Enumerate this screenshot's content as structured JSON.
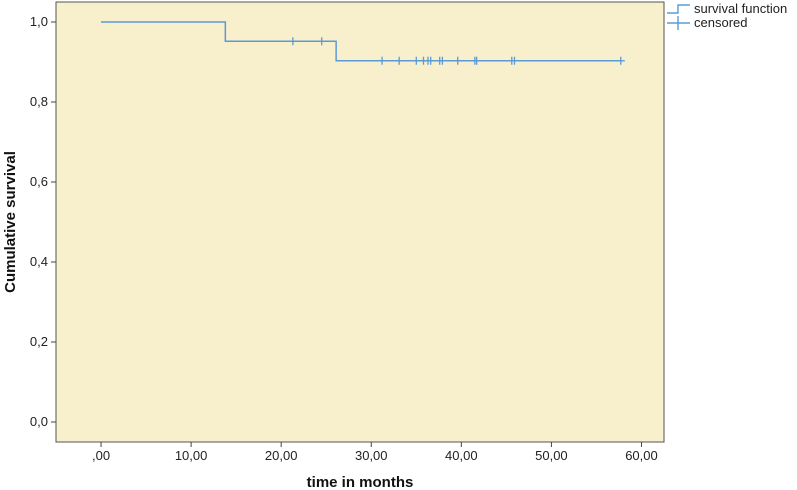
{
  "chart_data": {
    "type": "line",
    "subtype": "kaplan-meier",
    "xlabel": "time in months",
    "ylabel": "Cumulative survival",
    "xlim": [
      -5,
      62.5
    ],
    "ylim": [
      -0.05,
      1.05
    ],
    "x_ticks": [
      0,
      10,
      20,
      30,
      40,
      50,
      60
    ],
    "x_tick_labels": [
      ",00",
      "10,00",
      "20,00",
      "30,00",
      "40,00",
      "50,00",
      "60,00"
    ],
    "y_ticks": [
      0,
      0.2,
      0.4,
      0.6,
      0.8,
      1.0
    ],
    "y_tick_labels": [
      "0,0",
      "0,2",
      "0,4",
      "0,6",
      "0,8",
      "1,0"
    ],
    "grid": false,
    "plot_background": "#f8efcc",
    "line_color": "#5b9bd5",
    "legend_position": "top-right outside",
    "series": [
      {
        "name": "survival function",
        "steps": [
          {
            "x": 0,
            "y": 1.0
          },
          {
            "x": 13.8,
            "y": 0.952
          },
          {
            "x": 26.1,
            "y": 0.903
          },
          {
            "x": 57.7,
            "y": 0.903
          }
        ]
      },
      {
        "name": "censored",
        "points": [
          {
            "x": 21.3,
            "y": 0.952
          },
          {
            "x": 24.5,
            "y": 0.952
          },
          {
            "x": 31.2,
            "y": 0.903
          },
          {
            "x": 33.1,
            "y": 0.903
          },
          {
            "x": 35.0,
            "y": 0.903
          },
          {
            "x": 35.8,
            "y": 0.903
          },
          {
            "x": 36.3,
            "y": 0.903
          },
          {
            "x": 36.6,
            "y": 0.903
          },
          {
            "x": 37.6,
            "y": 0.903
          },
          {
            "x": 37.9,
            "y": 0.903
          },
          {
            "x": 39.6,
            "y": 0.903
          },
          {
            "x": 41.5,
            "y": 0.903
          },
          {
            "x": 41.7,
            "y": 0.903
          },
          {
            "x": 45.6,
            "y": 0.903
          },
          {
            "x": 45.9,
            "y": 0.903
          },
          {
            "x": 57.7,
            "y": 0.903
          }
        ]
      }
    ]
  }
}
